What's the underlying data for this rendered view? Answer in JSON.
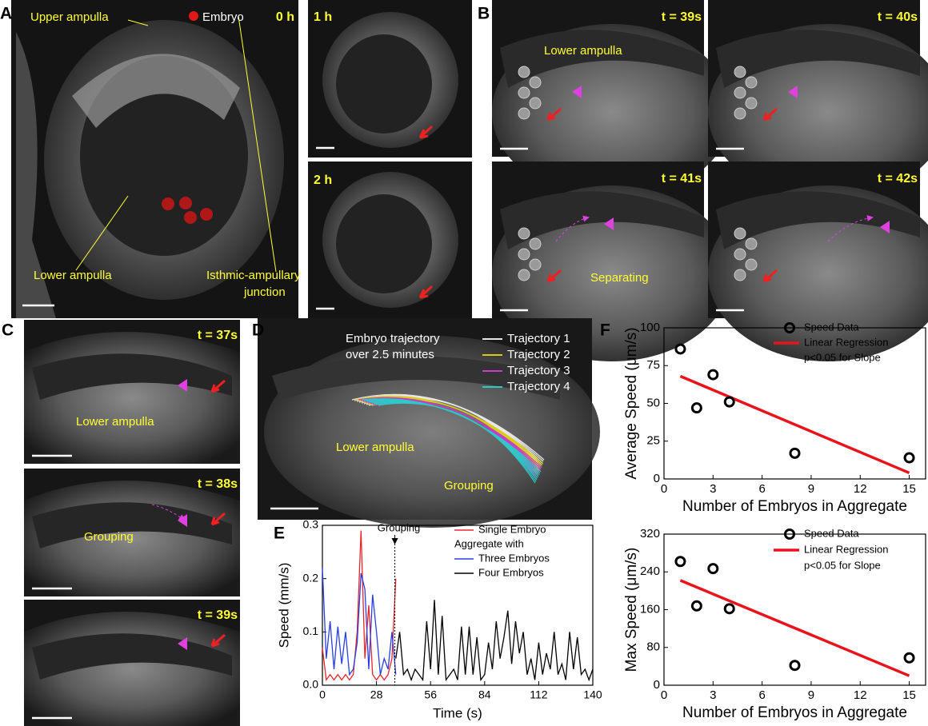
{
  "panel_a": {
    "label": "A",
    "upper": "Upper ampulla",
    "embryo": "Embryo",
    "time_main": "0 h",
    "lower": "Lower ampulla",
    "junction_lines": [
      "Isthmic-ampullary",
      "junction"
    ],
    "time_1": "1 h",
    "time_2": "2 h"
  },
  "panel_b": {
    "label": "B",
    "times": [
      "t = 39s",
      "t = 40s",
      "t = 41s",
      "t = 42s"
    ],
    "region": "Lower ampulla",
    "event": "Separating"
  },
  "panel_c": {
    "label": "C",
    "times": [
      "t = 37s",
      "t = 38s",
      "t = 39s"
    ],
    "region": "Lower ampulla",
    "event": "Grouping"
  },
  "panel_d": {
    "label": "D",
    "title_lines": [
      "Embryo trajectory",
      "over 2.5 minutes"
    ],
    "legend": [
      {
        "name": "Trajectory 1",
        "color": "#e6e6e6"
      },
      {
        "name": "Trajectory 2",
        "color": "#d8cc1a"
      },
      {
        "name": "Trajectory 3",
        "color": "#c83cc8"
      },
      {
        "name": "Trajectory 4",
        "color": "#2ec8c8"
      }
    ],
    "region": "Lower ampulla",
    "event": "Grouping"
  },
  "chart_data": [
    {
      "type": "line",
      "panel_label": "E",
      "x_label": "Time (s)",
      "y_label": "Speed (mm/s)",
      "xlim": [
        0,
        140
      ],
      "ylim": [
        0,
        0.3
      ],
      "xticks": [
        0,
        28,
        56,
        84,
        112,
        140
      ],
      "yticks": [
        {
          "value": 0,
          "label": "0.0"
        },
        0.1,
        0.2,
        0.3
      ],
      "legend_subtitle": "Aggregate with",
      "annotations": [
        {
          "text": "Grouping",
          "x": 37.5
        }
      ],
      "series": [
        {
          "name": "Single Embryo",
          "color": "#e8262a",
          "x": [
            0,
            2,
            4,
            6,
            8,
            10,
            12,
            14,
            16,
            18,
            20,
            22,
            24,
            26,
            28,
            30,
            32,
            34,
            36,
            38
          ],
          "values": [
            0.07,
            0.01,
            0.02,
            0.01,
            0.02,
            0.01,
            0.02,
            0.01,
            0.02,
            0.1,
            0.29,
            0.05,
            0.15,
            0.02,
            0.01,
            0.02,
            0.01,
            0.02,
            0.05,
            0.2
          ]
        },
        {
          "name": "Three Embryos",
          "color": "#2a3fe0",
          "x": [
            0,
            2,
            4,
            6,
            8,
            10,
            12,
            14,
            16,
            18,
            20,
            22,
            24,
            26,
            28,
            30,
            32,
            34,
            36,
            38
          ],
          "values": [
            0.22,
            0.05,
            0.12,
            0.03,
            0.11,
            0.04,
            0.1,
            0.02,
            0.03,
            0.08,
            0.21,
            0.18,
            0.03,
            0.17,
            0.1,
            0.02,
            0.05,
            0.03,
            0.1,
            0.02
          ]
        },
        {
          "name": "Four Embryos",
          "color": "#000000",
          "x": [
            38,
            40,
            42,
            44,
            46,
            48,
            50,
            52,
            54,
            56,
            58,
            60,
            62,
            64,
            66,
            68,
            70,
            72,
            74,
            76,
            78,
            80,
            82,
            84,
            86,
            88,
            90,
            92,
            94,
            96,
            98,
            100,
            102,
            104,
            106,
            108,
            110,
            112,
            114,
            116,
            118,
            120,
            122,
            124,
            126,
            128,
            130,
            132,
            134,
            136,
            138,
            140
          ],
          "values": [
            0.05,
            0.1,
            0.02,
            0.03,
            0.01,
            0.03,
            0.02,
            0.01,
            0.12,
            0.03,
            0.16,
            0.02,
            0.13,
            0.01,
            0.02,
            0.03,
            0.01,
            0.11,
            0.02,
            0.11,
            0.02,
            0.09,
            0.01,
            0.02,
            0.08,
            0.03,
            0.12,
            0.05,
            0.09,
            0.14,
            0.04,
            0.12,
            0.06,
            0.1,
            0.02,
            0.05,
            0.01,
            0.08,
            0.02,
            0.06,
            0.03,
            0.1,
            0.02,
            0.04,
            0.01,
            0.1,
            0.03,
            0.09,
            0.02,
            0.03,
            0.01,
            0.03
          ]
        }
      ]
    },
    {
      "type": "scatter",
      "panel_label": "F",
      "x_label": "Number of Embryos in Aggregate",
      "y_label": "Average Speed (μm/s)",
      "xlim": [
        0,
        16
      ],
      "ylim": [
        0,
        100
      ],
      "xticks": [
        0,
        3,
        6,
        9,
        12,
        15
      ],
      "yticks": [
        0,
        25,
        50,
        75,
        100
      ],
      "series": [
        {
          "name": "Speed Data",
          "color": "#000000",
          "x": [
            1,
            2,
            3,
            4,
            8,
            15
          ],
          "values": [
            86,
            47,
            69,
            51,
            17,
            14
          ]
        }
      ],
      "regression": {
        "name": "Linear Regression",
        "color": "#e8141c",
        "x": [
          1,
          15
        ],
        "values": [
          68,
          4
        ]
      },
      "note": "p<0.05 for Slope"
    },
    {
      "type": "scatter",
      "x_label": "Number of Embryos in Aggregate",
      "y_label": "Max Speed (μm/s)",
      "xlim": [
        0,
        16
      ],
      "ylim": [
        0,
        320
      ],
      "xticks": [
        0,
        3,
        6,
        9,
        12,
        15
      ],
      "yticks": [
        0,
        80,
        160,
        240,
        320
      ],
      "series": [
        {
          "name": "Speed Data",
          "color": "#000000",
          "x": [
            1,
            2,
            3,
            4,
            8,
            15
          ],
          "values": [
            262,
            168,
            247,
            162,
            42,
            58
          ]
        }
      ],
      "regression": {
        "name": "Linear Regression",
        "color": "#e8141c",
        "x": [
          1,
          15
        ],
        "values": [
          222,
          20
        ]
      },
      "note": "p<0.05 for Slope"
    }
  ]
}
